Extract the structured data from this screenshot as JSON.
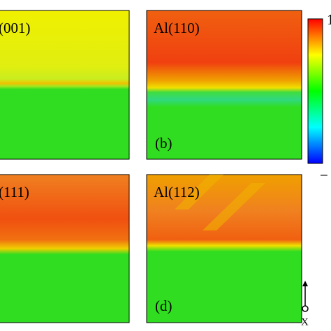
{
  "panels": [
    {
      "title": "(001)"
    },
    {
      "title": "Al(110)",
      "letter": "(b)"
    },
    {
      "title": "(111)"
    },
    {
      "title": "Al(112)",
      "letter": "(d)"
    }
  ],
  "colorbar": {
    "max_label": "1",
    "min_label": "−"
  },
  "axis_label": "X"
}
